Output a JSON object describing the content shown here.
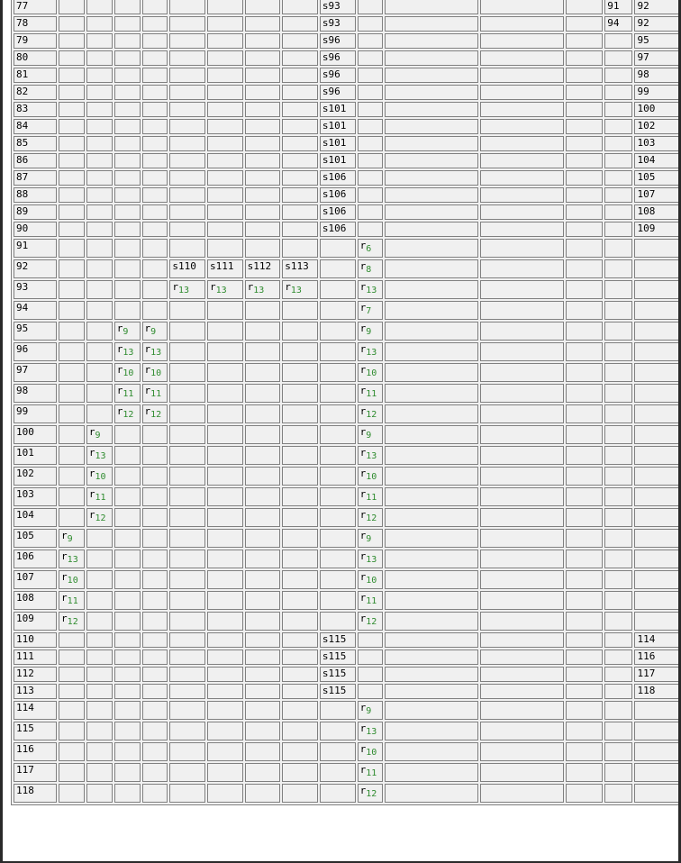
{
  "rows": [
    {
      "state": "77",
      "cells": {
        "8": "s93",
        "13": "91",
        "14": "92"
      }
    },
    {
      "state": "78",
      "cells": {
        "8": "s93",
        "13": "94",
        "14": "92"
      }
    },
    {
      "state": "79",
      "cells": {
        "8": "s96",
        "14": "95"
      }
    },
    {
      "state": "80",
      "cells": {
        "8": "s96",
        "14": "97"
      }
    },
    {
      "state": "81",
      "cells": {
        "8": "s96",
        "14": "98"
      }
    },
    {
      "state": "82",
      "cells": {
        "8": "s96",
        "14": "99"
      }
    },
    {
      "state": "83",
      "cells": {
        "8": "s101",
        "14": "100"
      }
    },
    {
      "state": "84",
      "cells": {
        "8": "s101",
        "14": "102"
      }
    },
    {
      "state": "85",
      "cells": {
        "8": "s101",
        "14": "103"
      }
    },
    {
      "state": "86",
      "cells": {
        "8": "s101",
        "14": "104"
      }
    },
    {
      "state": "87",
      "cells": {
        "8": "s106",
        "14": "105"
      }
    },
    {
      "state": "88",
      "cells": {
        "8": "s106",
        "14": "107"
      }
    },
    {
      "state": "89",
      "cells": {
        "8": "s106",
        "14": "108"
      }
    },
    {
      "state": "90",
      "cells": {
        "8": "s106",
        "14": "109"
      }
    },
    {
      "state": "91",
      "cells": {
        "9": "r6"
      }
    },
    {
      "state": "92",
      "cells": {
        "4": "s110",
        "5": "s111",
        "6": "s112",
        "7": "s113",
        "9": "r8"
      }
    },
    {
      "state": "93",
      "cells": {
        "4": "r13",
        "5": "r13",
        "6": "r13",
        "7": "r13",
        "9": "r13"
      }
    },
    {
      "state": "94",
      "cells": {
        "9": "r7"
      }
    },
    {
      "state": "95",
      "cells": {
        "2": "r9",
        "3": "r9",
        "9": "r9"
      }
    },
    {
      "state": "96",
      "cells": {
        "2": "r13",
        "3": "r13",
        "9": "r13"
      }
    },
    {
      "state": "97",
      "cells": {
        "2": "r10",
        "3": "r10",
        "9": "r10"
      }
    },
    {
      "state": "98",
      "cells": {
        "2": "r11",
        "3": "r11",
        "9": "r11"
      }
    },
    {
      "state": "99",
      "cells": {
        "2": "r12",
        "3": "r12",
        "9": "r12"
      }
    },
    {
      "state": "100",
      "cells": {
        "1": "r9",
        "9": "r9"
      }
    },
    {
      "state": "101",
      "cells": {
        "1": "r13",
        "9": "r13"
      }
    },
    {
      "state": "102",
      "cells": {
        "1": "r10",
        "9": "r10"
      }
    },
    {
      "state": "103",
      "cells": {
        "1": "r11",
        "9": "r11"
      }
    },
    {
      "state": "104",
      "cells": {
        "1": "r12",
        "9": "r12"
      }
    },
    {
      "state": "105",
      "cells": {
        "0": "r9",
        "9": "r9"
      }
    },
    {
      "state": "106",
      "cells": {
        "0": "r13",
        "9": "r13"
      }
    },
    {
      "state": "107",
      "cells": {
        "0": "r10",
        "9": "r10"
      }
    },
    {
      "state": "108",
      "cells": {
        "0": "r11",
        "9": "r11"
      }
    },
    {
      "state": "109",
      "cells": {
        "0": "r12",
        "9": "r12"
      }
    },
    {
      "state": "110",
      "cells": {
        "8": "s115",
        "14": "114"
      }
    },
    {
      "state": "111",
      "cells": {
        "8": "s115",
        "14": "116"
      }
    },
    {
      "state": "112",
      "cells": {
        "8": "s115",
        "14": "117"
      }
    },
    {
      "state": "113",
      "cells": {
        "8": "s115",
        "14": "118"
      }
    },
    {
      "state": "114",
      "cells": {
        "9": "r9"
      }
    },
    {
      "state": "115",
      "cells": {
        "9": "r13"
      }
    },
    {
      "state": "116",
      "cells": {
        "9": "r10"
      }
    },
    {
      "state": "117",
      "cells": {
        "9": "r11"
      }
    },
    {
      "state": "118",
      "cells": {
        "9": "r12"
      }
    }
  ]
}
